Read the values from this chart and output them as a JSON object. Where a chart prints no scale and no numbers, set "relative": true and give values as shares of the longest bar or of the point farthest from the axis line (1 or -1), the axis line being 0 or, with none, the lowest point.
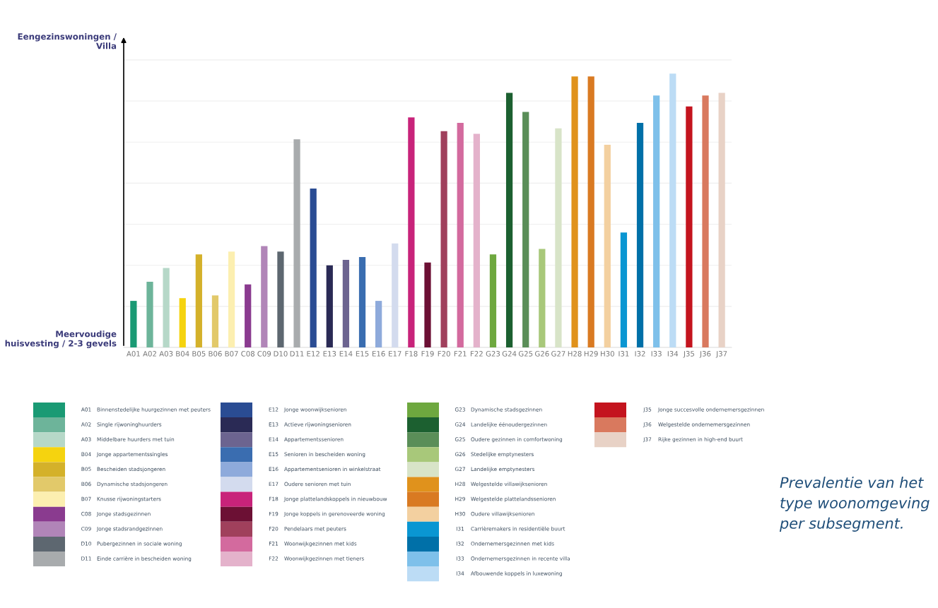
{
  "chart_data": {
    "type": "bar",
    "relative": true,
    "grid": "y",
    "categories": [
      "A01",
      "A02",
      "A03",
      "B04",
      "B05",
      "B06",
      "B07",
      "C08",
      "C09",
      "D10",
      "D11",
      "E12",
      "E13",
      "E14",
      "E15",
      "E16",
      "E17",
      "F18",
      "F19",
      "F20",
      "F21",
      "F22",
      "G23",
      "G24",
      "G25",
      "G26",
      "G27",
      "H28",
      "H29",
      "H30",
      "I31",
      "I32",
      "I33",
      "I34",
      "J35",
      "J36",
      "J37"
    ],
    "values": [
      0.17,
      0.24,
      0.29,
      0.18,
      0.34,
      0.19,
      0.35,
      0.23,
      0.37,
      0.35,
      0.76,
      0.58,
      0.3,
      0.32,
      0.33,
      0.17,
      0.38,
      0.84,
      0.31,
      0.79,
      0.82,
      0.78,
      0.34,
      0.93,
      0.86,
      0.36,
      0.8,
      0.99,
      0.99,
      0.74,
      0.42,
      0.82,
      0.92,
      1.0,
      0.88,
      0.92,
      0.93
    ],
    "colors": [
      "#1a9a74",
      "#6db49a",
      "#b6d8c8",
      "#f5d30f",
      "#d4b12a",
      "#e2c96a",
      "#fcefb0",
      "#8a3b8f",
      "#b185b8",
      "#5d6770",
      "#a8abad",
      "#2a4c93",
      "#2a2a55",
      "#6c6490",
      "#3a6db0",
      "#8eaadb",
      "#d3dbee",
      "#c8237a",
      "#6c1034",
      "#a0405c",
      "#d36a9e",
      "#e4b2cb",
      "#6ea83f",
      "#1c6030",
      "#5a8e58",
      "#a8c87a",
      "#d8e4c8",
      "#e0921c",
      "#d97a22",
      "#f3d0a0",
      "#0a96d2",
      "#0070a8",
      "#7ec0ea",
      "#bcdcf5",
      "#c4141e",
      "#d9795e",
      "#e8d2c6"
    ],
    "annotations": [
      "Eengezinswoningen /\nVilla",
      "Meervoudige\nhuisvesting / 2-3 gevels",
      "Binnenstedelijke huurgezinnen met peuters",
      "Single rijwoninghuurders",
      "Middelbare huurders met tuin",
      "Jonge appartementssingles",
      "Bescheiden stadsjongeren",
      "Dynamische stadsjongeren",
      "Knusse rijwoningstarters",
      "Jonge stadsgezinnen",
      "Jonge stadsrandgezinnen",
      "Pubergezinnen in sociale woning",
      "Einde carrière in bescheiden woning",
      "Jonge woonwijksenioren",
      "Actieve rijwoningsenioren",
      "Appartementssenioren",
      "Senioren in bescheiden woning",
      "Appartementsenioren in winkelstraat",
      "Oudere senioren met tuin",
      "Jonge plattelandskoppels in nieuwbouw",
      "Jonge koppels in gerenoveerde woning",
      "Pendelaars met peuters",
      "Woonwijkgezinnen met kids",
      "Woonwijkgezinnen met tieners",
      "Dynamische stadsgezinnen",
      "Landelijke éénoudergezinnen",
      "Oudere gezinnen in comfortwoning",
      "Stedelijke emptynesters",
      "Landelijke emptynesters",
      "Welgestelde villawijksenioren",
      "Welgestelde plattelandssenioren",
      "Oudere villawijksenioren",
      "Carrièremakers in residentiële buurt",
      "Ondernemersgezinnen met kids",
      "Ondernemersgezinnen in recente villa",
      "Afbouwende koppels in luxewoning",
      "Jonge succesvolle ondernemersgezinnen",
      "Welgestelde ondernemersgezinnen",
      "Rijke gezinnen in high-end buurt",
      "Prevalentie van het type woonomgeving per subsegment."
    ]
  }
}
